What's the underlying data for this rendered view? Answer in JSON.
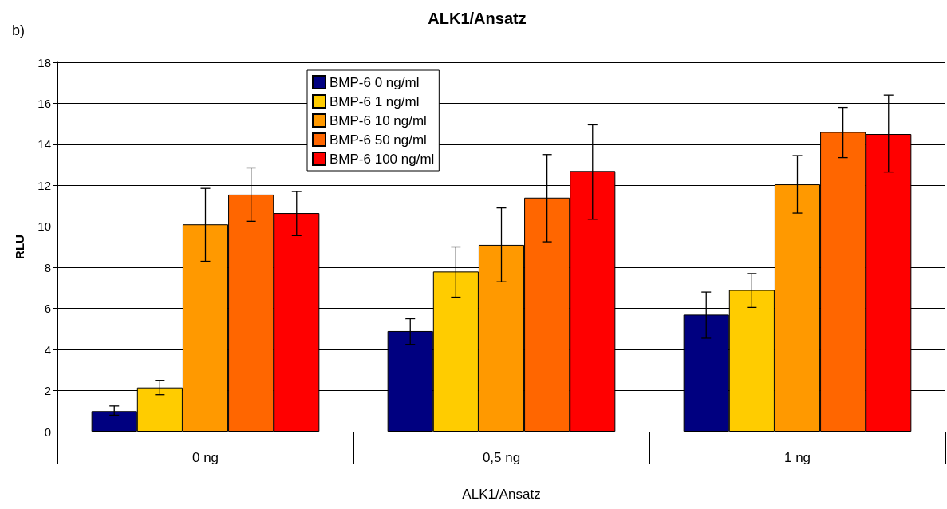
{
  "chart_data": {
    "type": "bar",
    "title": "ALK1/Ansatz",
    "xlabel": "ALK1/Ansatz",
    "ylabel": "RLU",
    "annotations": [
      "b)"
    ],
    "categories": [
      "0 ng",
      "0,5 ng",
      "1 ng"
    ],
    "series": [
      {
        "name": "BMP-6 0 ng/ml",
        "color": "#000080",
        "values": [
          1.0,
          4.9,
          5.7
        ],
        "errors": [
          [
            0.8,
            1.25
          ],
          [
            4.25,
            5.5
          ],
          [
            4.55,
            6.8
          ]
        ]
      },
      {
        "name": "BMP-6 1 ng/ml",
        "color": "#ffcc00",
        "values": [
          2.15,
          7.8,
          6.9
        ],
        "errors": [
          [
            1.8,
            2.5
          ],
          [
            6.55,
            9.0
          ],
          [
            6.05,
            7.7
          ]
        ]
      },
      {
        "name": "BMP-6 10 ng/ml",
        "color": "#ff9900",
        "values": [
          10.1,
          9.1,
          12.05
        ],
        "errors": [
          [
            8.3,
            11.85
          ],
          [
            7.3,
            10.9
          ],
          [
            10.65,
            13.45
          ]
        ]
      },
      {
        "name": "BMP-6 50 ng/ml",
        "color": "#ff6600",
        "values": [
          11.55,
          11.4,
          14.6
        ],
        "errors": [
          [
            10.25,
            12.85
          ],
          [
            9.25,
            13.5
          ],
          [
            13.35,
            15.8
          ]
        ]
      },
      {
        "name": "BMP-6 100 ng/ml",
        "color": "#ff0000",
        "values": [
          10.65,
          12.7,
          14.5
        ],
        "errors": [
          [
            9.55,
            11.7
          ],
          [
            10.35,
            14.95
          ],
          [
            12.65,
            16.4
          ]
        ]
      }
    ],
    "ylim": [
      0,
      18
    ],
    "yticks": [
      0,
      2,
      4,
      6,
      8,
      10,
      12,
      14,
      16,
      18
    ],
    "grid": "y",
    "legend": "top"
  }
}
